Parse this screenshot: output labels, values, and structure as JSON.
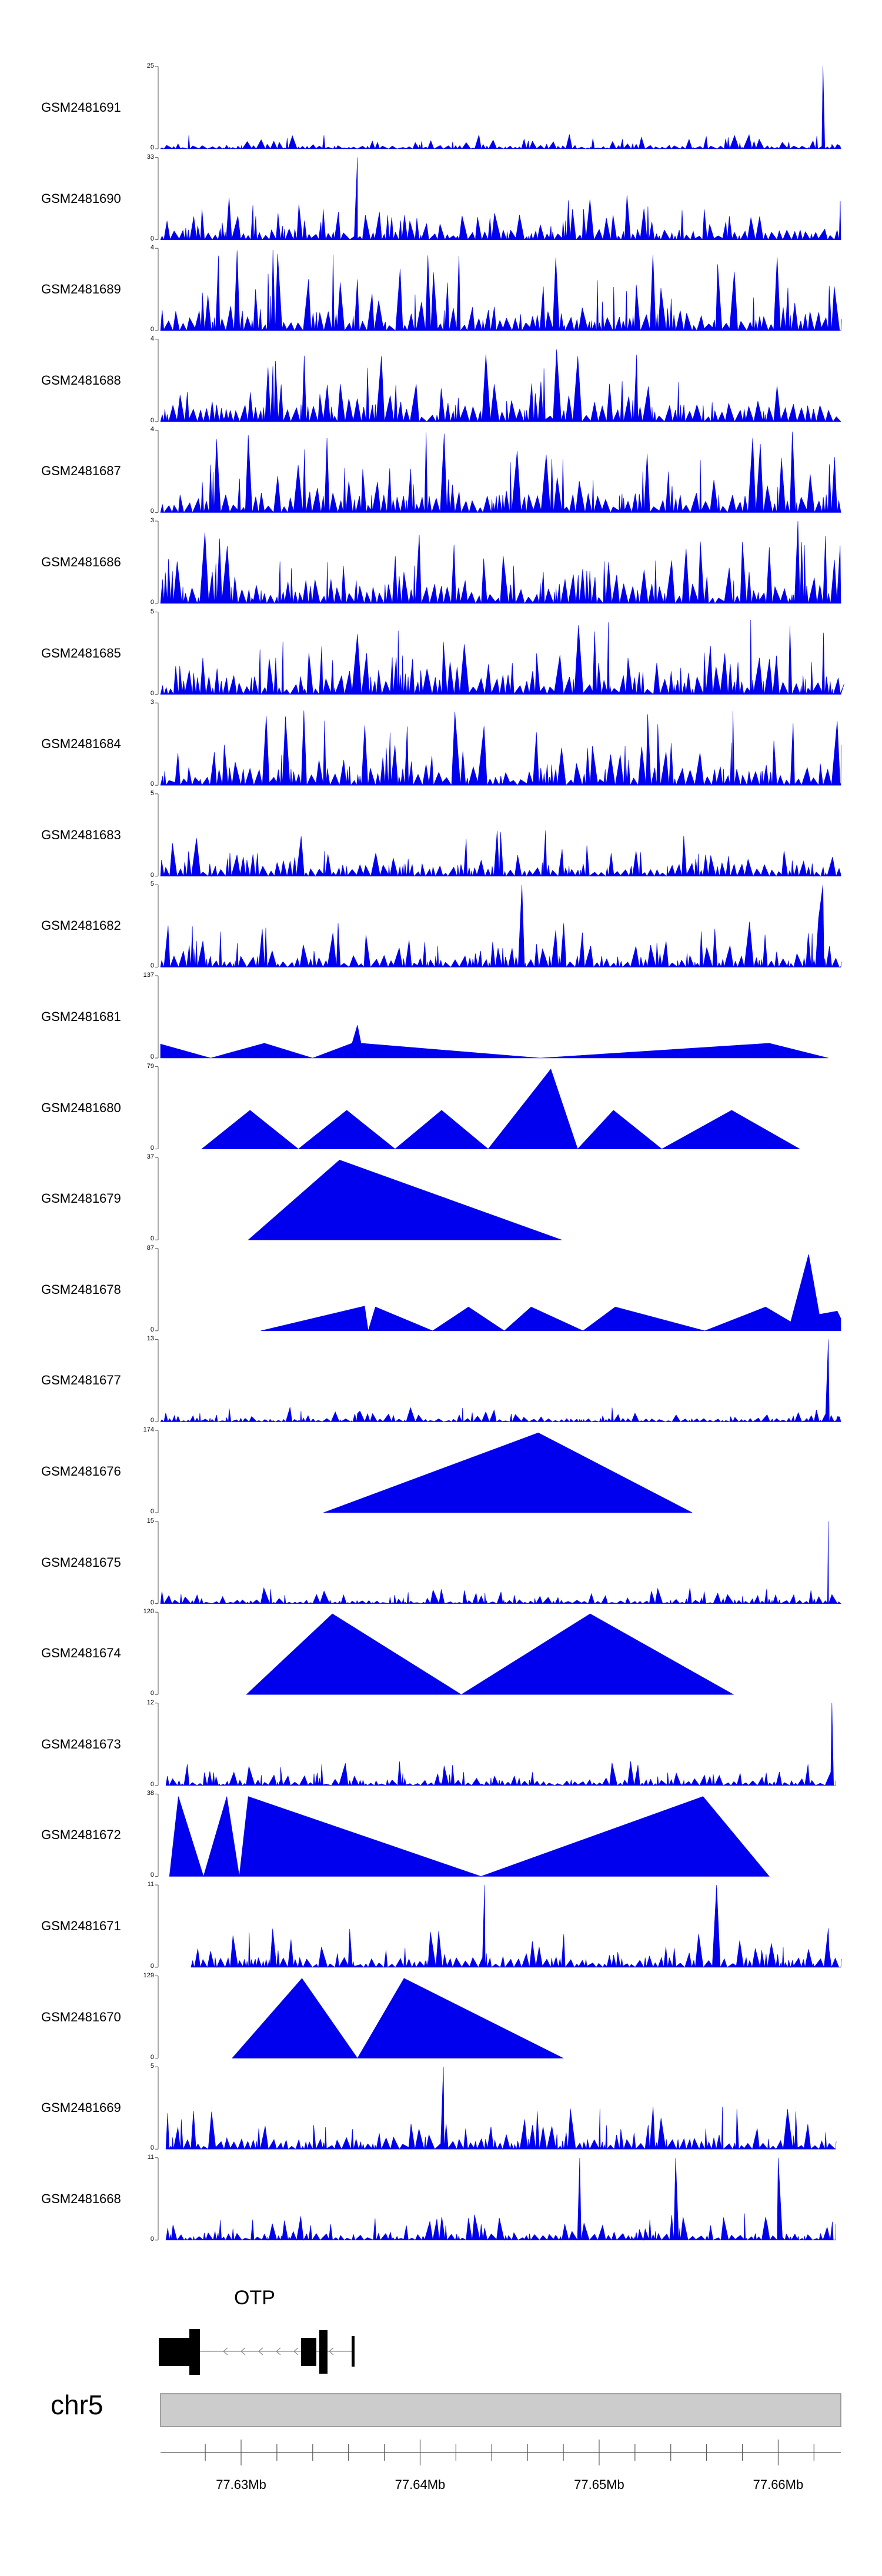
{
  "colors": {
    "signal": "#0000ee",
    "axis": "#555555",
    "gene": "#000000",
    "ideogram_fill": "#cccccc",
    "ideogram_border": "#888888"
  },
  "chart_data": {
    "type": "area",
    "chromosome": "chr5",
    "x_range_mb": [
      77.6255,
      77.6635
    ],
    "tracks": [
      {
        "name": "GSM2481691",
        "ymax": "25",
        "ymin": "0"
      },
      {
        "name": "GSM2481690",
        "ymax": "33",
        "ymin": "0"
      },
      {
        "name": "GSM2481689",
        "ymax": "4",
        "ymin": "0"
      },
      {
        "name": "GSM2481688",
        "ymax": "4",
        "ymin": "0"
      },
      {
        "name": "GSM2481687",
        "ymax": "4",
        "ymin": "0"
      },
      {
        "name": "GSM2481686",
        "ymax": "3",
        "ymin": "0"
      },
      {
        "name": "GSM2481685",
        "ymax": "5",
        "ymin": "0"
      },
      {
        "name": "GSM2481684",
        "ymax": "3",
        "ymin": "0"
      },
      {
        "name": "GSM2481683",
        "ymax": "5",
        "ymin": "0"
      },
      {
        "name": "GSM2481682",
        "ymax": "5",
        "ymin": "0"
      },
      {
        "name": "GSM2481681",
        "ymax": "137",
        "ymin": "0",
        "points": [
          [
            77.6255,
            0.17
          ],
          [
            77.6283,
            0
          ],
          [
            77.6313,
            0.18
          ],
          [
            77.634,
            0
          ],
          [
            77.6362,
            0.18
          ],
          [
            77.6365,
            0.4
          ],
          [
            77.6367,
            0.18
          ],
          [
            77.6467,
            0
          ],
          [
            77.6595,
            0.18
          ],
          [
            77.6628,
            0
          ]
        ]
      },
      {
        "name": "GSM2481680",
        "ymax": "79",
        "ymin": "0",
        "points": [
          [
            77.6278,
            0
          ],
          [
            77.6305,
            0.47
          ],
          [
            77.6332,
            0
          ],
          [
            77.6359,
            0.47
          ],
          [
            77.6386,
            0
          ],
          [
            77.6412,
            0.47
          ],
          [
            77.6438,
            0
          ],
          [
            77.6473,
            0.97
          ],
          [
            77.6488,
            0
          ],
          [
            77.6508,
            0.47
          ],
          [
            77.6535,
            0
          ],
          [
            77.6574,
            0.47
          ],
          [
            77.6612,
            0
          ]
        ]
      },
      {
        "name": "GSM2481679",
        "ymax": "37",
        "ymin": "0",
        "points": [
          [
            77.6304,
            0
          ],
          [
            77.6355,
            0.97
          ],
          [
            77.6479,
            0
          ]
        ]
      },
      {
        "name": "GSM2481678",
        "ymax": "87",
        "ymin": "0",
        "points": [
          [
            77.6311,
            0
          ],
          [
            77.6369,
            0.3
          ],
          [
            77.6371,
            0
          ],
          [
            77.6375,
            0.29
          ],
          [
            77.6407,
            0
          ],
          [
            77.6427,
            0.29
          ],
          [
            77.6447,
            0
          ],
          [
            77.6462,
            0.29
          ],
          [
            77.6491,
            0
          ],
          [
            77.6509,
            0.29
          ],
          [
            77.6559,
            0
          ],
          [
            77.6593,
            0.29
          ],
          [
            77.6607,
            0.11
          ],
          [
            77.6617,
            0.93
          ],
          [
            77.6623,
            0.2
          ],
          [
            77.6633,
            0.24
          ],
          [
            77.6635,
            0.15
          ]
        ]
      },
      {
        "name": "GSM2481677",
        "ymax": "13",
        "ymin": "0"
      },
      {
        "name": "GSM2481676",
        "ymax": "174",
        "ymin": "0",
        "points": [
          [
            77.6346,
            0
          ],
          [
            77.6466,
            0.97
          ],
          [
            77.6552,
            0
          ]
        ]
      },
      {
        "name": "GSM2481675",
        "ymax": "15",
        "ymin": "0"
      },
      {
        "name": "GSM2481674",
        "ymax": "120",
        "ymin": "0",
        "points": [
          [
            77.6303,
            0
          ],
          [
            77.6351,
            0.98
          ],
          [
            77.6423,
            0
          ],
          [
            77.6495,
            0.98
          ],
          [
            77.6575,
            0
          ]
        ]
      },
      {
        "name": "GSM2481673",
        "ymax": "12",
        "ymin": "0"
      },
      {
        "name": "GSM2481672",
        "ymax": "38",
        "ymin": "0",
        "points": [
          [
            77.626,
            0
          ],
          [
            77.6265,
            0.97
          ],
          [
            77.6279,
            0
          ],
          [
            77.6292,
            0.97
          ],
          [
            77.6299,
            0
          ],
          [
            77.6304,
            0.97
          ],
          [
            77.6434,
            0
          ],
          [
            77.6558,
            0.97
          ],
          [
            77.6595,
            0
          ]
        ]
      },
      {
        "name": "GSM2481671",
        "ymax": "11",
        "ymin": "0"
      },
      {
        "name": "GSM2481670",
        "ymax": "129",
        "ymin": "0",
        "points": [
          [
            77.6295,
            0
          ],
          [
            77.6334,
            0.97
          ],
          [
            77.6365,
            0
          ],
          [
            77.6391,
            0.97
          ],
          [
            77.648,
            0
          ]
        ]
      },
      {
        "name": "GSM2481669",
        "ymax": "5",
        "ymin": "0"
      },
      {
        "name": "GSM2481668",
        "ymax": "11",
        "ymin": "0"
      }
    ],
    "gene": {
      "name": "OTP",
      "strand": "-"
    },
    "x_ticks": [
      "77.63Mb",
      "77.64Mb",
      "77.65Mb",
      "77.66Mb"
    ],
    "x_tick_positions_mb": [
      77.63,
      77.64,
      77.65,
      77.66
    ]
  }
}
